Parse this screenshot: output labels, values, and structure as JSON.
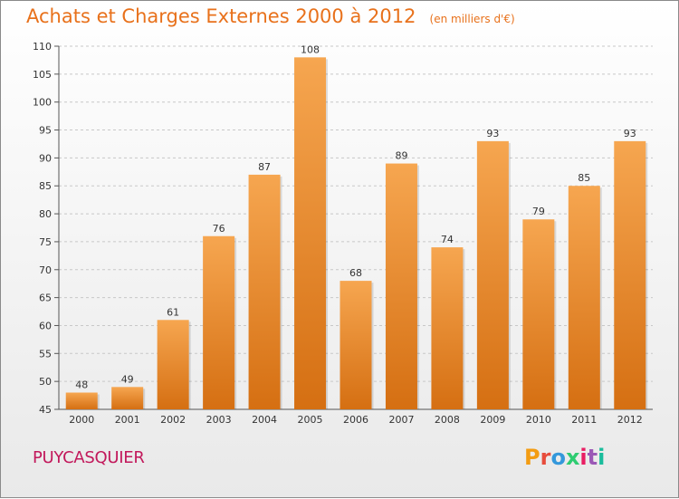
{
  "header": {
    "title": "Achats et Charges Externes 2000 à 2012",
    "unit": "(en milliers d'€)"
  },
  "footer": {
    "commune": "PUYCASQUIER",
    "logo_text": "Proxiti",
    "logo_colors": [
      "#f39c12",
      "#e74c3c",
      "#3498db",
      "#2ecc71",
      "#e91e63",
      "#9b59b6",
      "#1abc9c"
    ]
  },
  "chart_data": {
    "type": "bar",
    "categories": [
      "2000",
      "2001",
      "2002",
      "2003",
      "2004",
      "2005",
      "2006",
      "2007",
      "2008",
      "2009",
      "2010",
      "2011",
      "2012"
    ],
    "values": [
      48,
      49,
      61,
      76,
      87,
      108,
      68,
      89,
      74,
      93,
      79,
      85,
      93
    ],
    "title": "Achats et Charges Externes 2000 à 2012",
    "xlabel": "",
    "ylabel": "",
    "ylim": [
      45,
      110
    ],
    "yticks": [
      45,
      50,
      55,
      60,
      65,
      70,
      75,
      80,
      85,
      90,
      95,
      100,
      105,
      110
    ],
    "grid": "horizontal-dashed",
    "bar_color_top": "#f6a650",
    "bar_color_bottom": "#d56f12"
  }
}
